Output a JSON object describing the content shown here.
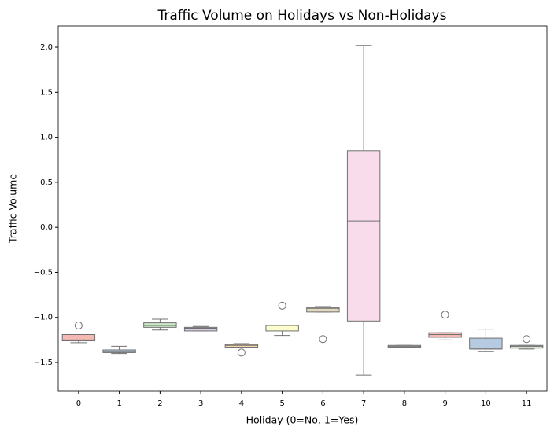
{
  "chart_data": {
    "type": "box",
    "title": "Traffic Volume on Holidays vs Non-Holidays",
    "x_label": "Holiday (0=No, 1=Yes)",
    "y_label": "Traffic Volume",
    "categories": [
      "0",
      "1",
      "2",
      "3",
      "4",
      "5",
      "6",
      "7",
      "8",
      "9",
      "10",
      "11"
    ],
    "colors": [
      "#f4b9b2",
      "#b6cbe0",
      "#cde8c7",
      "#d9cce0",
      "#f9d7ad",
      "#fdfccd",
      "#e3d8c0",
      "#f8dceb",
      "#eeeeee",
      "#f4b9b2",
      "#b6cbe0",
      "#d3ddd0"
    ],
    "boxes": [
      {
        "min": -1.28,
        "q1": -1.26,
        "median": -1.25,
        "q3": -1.19,
        "max": -1.19,
        "outliers": [
          -1.09
        ]
      },
      {
        "min": -1.4,
        "q1": -1.39,
        "median": -1.385,
        "q3": -1.36,
        "max": -1.32,
        "outliers": []
      },
      {
        "min": -1.14,
        "q1": -1.11,
        "median": -1.09,
        "q3": -1.06,
        "max": -1.02,
        "outliers": []
      },
      {
        "min": -1.15,
        "q1": -1.15,
        "median": -1.12,
        "q3": -1.11,
        "max": -1.1,
        "outliers": []
      },
      {
        "min": -1.33,
        "q1": -1.33,
        "median": -1.31,
        "q3": -1.3,
        "max": -1.29,
        "outliers": [
          -1.39
        ]
      },
      {
        "min": -1.2,
        "q1": -1.15,
        "median": -1.09,
        "q3": -1.09,
        "max": -1.09,
        "outliers": [
          -0.87
        ]
      },
      {
        "min": -0.94,
        "q1": -0.94,
        "median": -0.9,
        "q3": -0.89,
        "max": -0.88,
        "outliers": [
          -1.24
        ]
      },
      {
        "min": -1.64,
        "q1": -1.04,
        "median": 0.07,
        "q3": 0.85,
        "max": 2.02,
        "outliers": []
      },
      {
        "min": -1.33,
        "q1": -1.33,
        "median": -1.32,
        "q3": -1.31,
        "max": -1.31,
        "outliers": []
      },
      {
        "min": -1.25,
        "q1": -1.22,
        "median": -1.19,
        "q3": -1.17,
        "max": -1.17,
        "outliers": [
          -0.97
        ]
      },
      {
        "min": -1.38,
        "q1": -1.35,
        "median": -1.35,
        "q3": -1.23,
        "max": -1.13,
        "outliers": []
      },
      {
        "min": -1.35,
        "q1": -1.34,
        "median": -1.32,
        "q3": -1.31,
        "max": -1.31,
        "outliers": [
          -1.24
        ]
      }
    ],
    "ylim": [
      -1.814,
      2.236
    ],
    "yticks": [
      {
        "value": -1.5,
        "label": "−1.5"
      },
      {
        "value": -1.0,
        "label": "−1.0"
      },
      {
        "value": -0.5,
        "label": "−0.5"
      },
      {
        "value": 0.0,
        "label": "0.0"
      },
      {
        "value": 0.5,
        "label": "0.5"
      },
      {
        "value": 1.0,
        "label": "1.0"
      },
      {
        "value": 1.5,
        "label": "1.5"
      },
      {
        "value": 2.0,
        "label": "2.0"
      }
    ],
    "line_color": "#707070"
  }
}
